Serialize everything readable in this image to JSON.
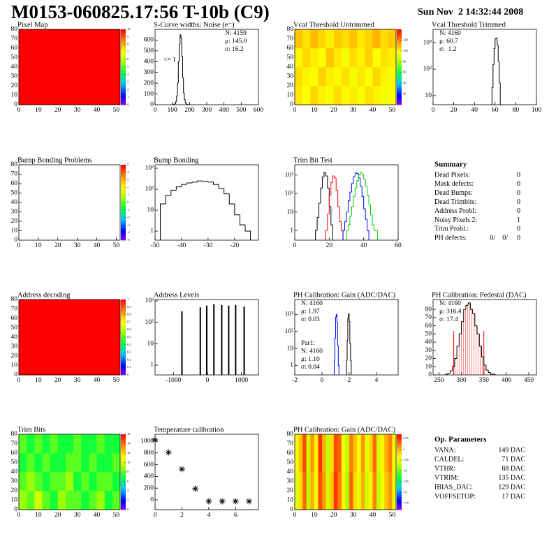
{
  "header": {
    "title": "M0153-060825.17:56 T-10b (C9)",
    "date": "Sun Nov  2 14:32:44 2008"
  },
  "chart_data": [
    {
      "type": "heatmap",
      "title": "Pixel Map",
      "xlim": [
        0,
        52
      ],
      "ylim": [
        0,
        80
      ],
      "xticks": [
        0,
        10,
        20,
        30,
        40,
        50
      ],
      "yticks": [
        0,
        10,
        20,
        30,
        40,
        50,
        60,
        70,
        80
      ],
      "zlim": [
        0,
        10
      ],
      "zticks": [
        0,
        1,
        2,
        3,
        4,
        5,
        6,
        7,
        8,
        9,
        10
      ],
      "z": [
        [
          10
        ]
      ]
    },
    {
      "type": "hist",
      "title": "S-Curve widths: Noise (e⁻)",
      "xlim": [
        0,
        600
      ],
      "ylim": [
        0,
        700
      ],
      "xticks": [
        0,
        100,
        200,
        300,
        400,
        500,
        600
      ],
      "yticks": [
        0,
        100,
        200,
        300,
        400,
        500,
        600
      ],
      "stats_corner": "right",
      "stats": [
        {
          "text": "N: 4159",
          "color": "#000000"
        },
        {
          "text": "μ: 145.0",
          "color": "#000000"
        },
        {
          "text": "σ: 16.2",
          "color": "#000000"
        }
      ],
      "annotation": "<= 1",
      "series": [
        {
          "color": "#000000",
          "bins": [
            105,
            110,
            115,
            120,
            125,
            130,
            135,
            140,
            145,
            150,
            155,
            160,
            165,
            170,
            175,
            180,
            185,
            190,
            195
          ],
          "values": [
            2,
            5,
            10,
            30,
            80,
            200,
            400,
            560,
            650,
            620,
            450,
            250,
            110,
            50,
            20,
            8,
            3,
            1
          ]
        }
      ]
    },
    {
      "type": "heatmap",
      "title": "Vcal Threshold Untrimmed",
      "xlim": [
        0,
        52
      ],
      "ylim": [
        0,
        80
      ],
      "xticks": [
        0,
        10,
        20,
        30,
        40,
        50
      ],
      "yticks": [
        0,
        10,
        20,
        30,
        40,
        50,
        60,
        70,
        80
      ],
      "zlim": [
        0,
        140
      ],
      "zticks": [
        20,
        40,
        60,
        80,
        100,
        120
      ],
      "z": [
        [
          102,
          98,
          105,
          100,
          96,
          104,
          99,
          101,
          97,
          103,
          100,
          95,
          98
        ],
        [
          104,
          100,
          97,
          106,
          101,
          99,
          103,
          96,
          102,
          98,
          105,
          100,
          97
        ],
        [
          99,
          105,
          101,
          97,
          108,
          102,
          96,
          104,
          100,
          106,
          98,
          103,
          101
        ],
        [
          108,
          103,
          110,
          105,
          101,
          107,
          104,
          109,
          102,
          106,
          111,
          104,
          107
        ]
      ]
    },
    {
      "type": "hist",
      "title": "Vcal Threshold Trimmed",
      "logy": true,
      "xlim": [
        0,
        100
      ],
      "ylim": [
        4.5,
        3200
      ],
      "xticks": [
        0,
        20,
        40,
        60,
        80,
        100
      ],
      "yticks": [
        10,
        {
          "value": 100,
          "label": "10²"
        },
        {
          "value": 1000,
          "label": "10³"
        }
      ],
      "stats_corner": "left",
      "stats": [
        {
          "text": "N: 4160",
          "color": "#000000"
        },
        {
          "text": "μ: 60.7",
          "color": "#000000"
        },
        {
          "text": "σ:  1.2",
          "color": "#000000"
        }
      ],
      "series": [
        {
          "color": "#000000",
          "bins": [
            56,
            57,
            58,
            59,
            60,
            61,
            62,
            63,
            64,
            65,
            66
          ],
          "values": [
            3,
            20,
            150,
            600,
            1400,
            1500,
            800,
            200,
            30,
            3
          ]
        }
      ]
    },
    {
      "type": "heatmap",
      "title": "Bump Bonding Problems",
      "xlim": [
        0,
        52
      ],
      "ylim": [
        0,
        80
      ],
      "xticks": [
        0,
        10,
        20,
        30,
        40,
        50
      ],
      "yticks": [
        0,
        10,
        20,
        30,
        40,
        50,
        60,
        70,
        80
      ],
      "zlim": [
        -5,
        5
      ],
      "zticks": [
        -5,
        -4,
        -3,
        -2,
        -1,
        0,
        1,
        2,
        3,
        4,
        5
      ],
      "z": []
    },
    {
      "type": "hist",
      "title": "Bump Bonding",
      "logy": true,
      "xlim": [
        -50,
        -11
      ],
      "ylim": [
        0.37,
        1470
      ],
      "xticks": [
        -50,
        -40,
        -30,
        -20
      ],
      "yticks": [
        1,
        10,
        {
          "value": 100,
          "label": "10²"
        },
        {
          "value": 1000,
          "label": "10³"
        }
      ],
      "series": [
        {
          "color": "#000000",
          "bins": [
            -48,
            -46,
            -44,
            -42,
            -40,
            -38,
            -36,
            -34,
            -32,
            -30,
            -28,
            -26,
            -24,
            -22,
            -20,
            -18,
            -16,
            -14
          ],
          "values": [
            20,
            50,
            90,
            130,
            170,
            200,
            220,
            250,
            240,
            220,
            170,
            110,
            60,
            20,
            6,
            2,
            1
          ]
        }
      ]
    },
    {
      "type": "hist",
      "title": "Trim Bit Test",
      "logy": true,
      "xlim": [
        0,
        60
      ],
      "ylim": [
        0.3,
        3600
      ],
      "xticks": [
        0,
        20,
        40,
        60
      ],
      "yticks": [
        1,
        10,
        {
          "value": 100,
          "label": "10²"
        },
        {
          "value": 1000,
          "label": "10³"
        }
      ],
      "series": [
        {
          "color": "#000000",
          "bins": [
            12,
            13,
            14,
            15,
            16,
            17,
            18,
            19,
            20,
            21,
            22
          ],
          "values": [
            1,
            5,
            30,
            200,
            800,
            1400,
            900,
            200,
            20,
            2
          ]
        },
        {
          "color": "#ff0000",
          "bins": [
            18,
            19,
            20,
            21,
            22,
            23,
            24,
            25,
            26,
            27,
            28
          ],
          "values": [
            1,
            8,
            80,
            400,
            900,
            700,
            150,
            20,
            3,
            1
          ]
        },
        {
          "color": "#0000ff",
          "bins": [
            28,
            29,
            30,
            31,
            32,
            33,
            34,
            35,
            36,
            37,
            38,
            39,
            40,
            41,
            42,
            43
          ],
          "values": [
            1,
            3,
            10,
            40,
            120,
            350,
            800,
            1300,
            1200,
            700,
            250,
            70,
            15,
            4,
            1
          ]
        },
        {
          "color": "#00cc00",
          "bins": [
            30,
            31,
            32,
            33,
            34,
            35,
            36,
            37,
            38,
            39,
            40,
            41,
            42,
            43,
            44,
            45,
            46,
            47,
            48
          ],
          "values": [
            1,
            2,
            6,
            20,
            70,
            200,
            500,
            1000,
            1400,
            1100,
            600,
            250,
            80,
            25,
            7,
            2,
            1,
            1
          ]
        }
      ]
    },
    {
      "type": "summary",
      "title": "Summary",
      "rows": [
        {
          "label": "Dead Pixels:",
          "value": 0
        },
        {
          "label": "Mask defects:",
          "value": 0
        },
        {
          "label": "Dead Bumps:",
          "value": 0
        },
        {
          "label": "Dead Trimbits:",
          "value": 0
        },
        {
          "label": "Address Probl:",
          "value": 0
        },
        {
          "label": "Noisy Pixels 2:",
          "value": 1
        },
        {
          "label": "Trim Probl.:",
          "value": 0
        },
        {
          "label": "PH defects:",
          "parts": [
            {
              "text": "0/",
              "color": "#000000"
            },
            {
              "text": "0/",
              "color": "#ff0000"
            },
            {
              "text": "0",
              "color": "#0000ff"
            }
          ]
        }
      ]
    },
    {
      "type": "heatmap",
      "title": "Address decoding",
      "xlim": [
        0,
        52
      ],
      "ylim": [
        0,
        80
      ],
      "xticks": [
        0,
        10,
        20,
        30,
        40,
        50
      ],
      "yticks": [
        0,
        10,
        20,
        30,
        40,
        50,
        60,
        70,
        80
      ],
      "zlim": [
        0,
        1
      ],
      "zticks": [
        0,
        0.1,
        0.2,
        0.3,
        0.4,
        0.5,
        0.6,
        0.7,
        0.8,
        0.9,
        1
      ],
      "z": [
        [
          1
        ]
      ]
    },
    {
      "type": "spikes",
      "title": "Address Levels",
      "logy": true,
      "xlim": [
        -1540,
        1500
      ],
      "ylim": [
        0.35,
        1160
      ],
      "xticks": [
        -1000,
        0,
        1000
      ],
      "yticks": [
        1,
        10,
        {
          "value": 100,
          "label": "10²"
        },
        {
          "value": 1000,
          "label": "10³"
        }
      ],
      "color": "#000000",
      "x": [
        -750,
        -210,
        -20,
        190,
        420,
        625,
        830,
        1080
      ],
      "values": [
        330,
        500,
        600,
        700,
        650,
        600,
        650,
        550
      ]
    },
    {
      "type": "hist",
      "title": "PH Calibration: Gain (ADC/DAC)",
      "logy": true,
      "xlim": [
        -2,
        5.6
      ],
      "ylim": [
        0.28,
        7600
      ],
      "xticks": [
        -2,
        0,
        2,
        4
      ],
      "yticks": [
        1,
        10,
        {
          "value": 100,
          "label": "10²"
        },
        {
          "value": 1000,
          "label": "10³"
        }
      ],
      "stats_corner": "left",
      "stats": [
        {
          "text": "N: 4160",
          "color": "#000000"
        },
        {
          "text": "μ: 1.97",
          "color": "#000000"
        },
        {
          "text": "σ: 0.03",
          "color": "#000000"
        }
      ],
      "stats2": [
        {
          "text": "Par1:",
          "color": "#0000ff"
        },
        {
          "text": "N: 4160",
          "color": "#0000ff"
        },
        {
          "text": "μ: 1.10",
          "color": "#0000ff"
        },
        {
          "text": "σ: 0.04",
          "color": "#0000ff"
        }
      ],
      "series": [
        {
          "color": "#000000",
          "bins": [
            1.8,
            1.85,
            1.9,
            1.95,
            2.0,
            2.05,
            2.1,
            2.15
          ],
          "values": [
            2,
            30,
            600,
            1100,
            400,
            20,
            2
          ]
        },
        {
          "color": "#0000ff",
          "bins": [
            0.9,
            0.95,
            1.0,
            1.05,
            1.1,
            1.15,
            1.2,
            1.25
          ],
          "values": [
            2,
            40,
            700,
            1000,
            350,
            15,
            1
          ]
        }
      ]
    },
    {
      "type": "hist",
      "title": "PH Calibration: Pedestal (DAC)",
      "xlim": [
        237,
        467
      ],
      "ylim": [
        0,
        92
      ],
      "xticks": [
        250,
        300,
        350,
        400,
        450
      ],
      "yticks": [
        0,
        10,
        20,
        30,
        40,
        50,
        60,
        70,
        80
      ],
      "stats_corner": "left",
      "stats": [
        {
          "text": "N: 4160",
          "color": "#000000"
        },
        {
          "text": "μ: 316.4",
          "color": "#ff0000"
        },
        {
          "text": "σ: 17.4",
          "color": "#ff0000"
        }
      ],
      "fit_range": [
        283,
        350
      ],
      "fill_color": "#ff0000",
      "series": [
        {
          "color": "#000000",
          "bins": [
            265,
            270,
            275,
            280,
            285,
            290,
            295,
            300,
            305,
            310,
            315,
            320,
            325,
            330,
            335,
            340,
            345,
            350,
            355,
            360,
            365,
            370,
            375
          ],
          "values": [
            1,
            2,
            5,
            10,
            20,
            35,
            50,
            65,
            80,
            85,
            88,
            80,
            75,
            60,
            50,
            35,
            22,
            12,
            6,
            3,
            1,
            1
          ]
        }
      ]
    },
    {
      "type": "heatmap",
      "title": "Trim Bits",
      "xlim": [
        0,
        52
      ],
      "ylim": [
        0,
        80
      ],
      "xticks": [
        0,
        10,
        20,
        30,
        40,
        50
      ],
      "yticks": [
        0,
        10,
        20,
        30,
        40,
        50,
        60,
        70,
        80
      ],
      "zlim": [
        0,
        16
      ],
      "zticks": [
        0,
        2,
        4,
        6,
        8,
        10,
        12,
        14,
        16
      ],
      "z": [
        [
          9,
          8,
          10,
          8,
          7,
          9,
          8,
          8,
          7,
          8,
          9,
          7,
          8
        ],
        [
          8,
          9,
          8,
          7,
          8,
          8,
          9,
          7,
          8,
          7,
          8,
          8,
          7
        ],
        [
          7,
          8,
          7,
          8,
          7,
          7,
          8,
          8,
          7,
          8,
          7,
          7,
          8
        ],
        [
          8,
          7,
          8,
          7,
          8,
          7,
          7,
          8,
          7,
          7,
          8,
          7,
          7
        ]
      ]
    },
    {
      "type": "scatter",
      "title": "Temperature calibration",
      "xlim": [
        0,
        7.7
      ],
      "ylim": [
        -167,
        1119
      ],
      "xticks": [
        0,
        2,
        4,
        6
      ],
      "yticks": [
        0,
        200,
        400,
        600,
        800,
        1000
      ],
      "color": "#000000",
      "x": [
        0,
        1,
        2,
        3,
        4,
        5,
        6,
        7
      ],
      "values": [
        1024,
        810,
        524,
        190,
        -24,
        -24,
        -24,
        -24
      ]
    },
    {
      "type": "heatmap",
      "title": "PH Calibration: Gain (ADC/DAC)",
      "xlim": [
        0,
        52
      ],
      "ylim": [
        0,
        80
      ],
      "xticks": [
        0,
        10,
        20,
        30,
        40,
        50
      ],
      "yticks": [
        0,
        10,
        20,
        30,
        40,
        50,
        60,
        70,
        80
      ],
      "zlim": [
        1.72,
        2.07
      ],
      "zticks": [
        1.75,
        1.8,
        1.85,
        1.9,
        1.95,
        2,
        2.05
      ],
      "z": [
        [
          1.95,
          1.98,
          2.03,
          1.93,
          2.0,
          1.96,
          2.04,
          2.01,
          1.94,
          1.99,
          2.05,
          2.02,
          1.97,
          1.92,
          2.03,
          1.98,
          1.95,
          2.0,
          1.94,
          1.97,
          2.02,
          1.93,
          1.96,
          1.99,
          2.01,
          1.95
        ],
        [
          1.96,
          1.99,
          2.04,
          1.94,
          2.01,
          1.97,
          2.05,
          2.0,
          1.93,
          1.98,
          2.04,
          2.03,
          1.96,
          1.93,
          2.02,
          1.99,
          1.96,
          2.01,
          1.95,
          1.98,
          2.03,
          1.94,
          1.97,
          2.0,
          2.02,
          1.96
        ]
      ]
    },
    {
      "type": "params",
      "title": "Op. Parameters",
      "rows": [
        {
          "label": "VANA:",
          "value": "149 DAC"
        },
        {
          "label": "CALDEL:",
          "value": "71 DAC"
        },
        {
          "label": "VTHR:",
          "value": "88 DAC"
        },
        {
          "label": "VTRIM:",
          "value": "135 DAC"
        },
        {
          "label": "IBIAS_DAC:",
          "value": "129 DAC"
        },
        {
          "label": "VOFFSETOP:",
          "value": "17 DAC"
        }
      ]
    }
  ]
}
